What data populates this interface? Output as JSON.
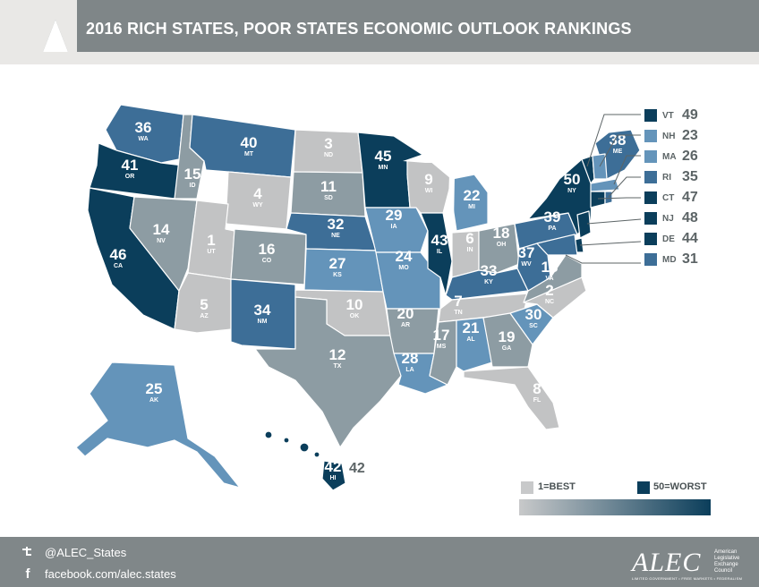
{
  "title": "2016 RICH STATES, POOR STATES ECONOMIC OUTLOOK RANKINGS",
  "scale": {
    "best_label": "1=BEST",
    "worst_label": "50=WORST",
    "best_color": "#c8c9ca",
    "worst_color": "#0b3e5b"
  },
  "colors": {
    "r1_10": "#c2c3c4",
    "r11_20": "#8d9ca3",
    "r21_30": "#6494ba",
    "r31_40": "#3d6e97",
    "r41_50": "#0b3e5b",
    "lake": "#ffffff"
  },
  "states": {
    "WA": {
      "rank": "36",
      "abbr": "WA"
    },
    "OR": {
      "rank": "41",
      "abbr": "OR"
    },
    "CA": {
      "rank": "46",
      "abbr": "CA"
    },
    "ID": {
      "rank": "15",
      "abbr": "ID"
    },
    "NV": {
      "rank": "14",
      "abbr": "NV"
    },
    "MT": {
      "rank": "40",
      "abbr": "MT"
    },
    "WY": {
      "rank": "4",
      "abbr": "WY"
    },
    "UT": {
      "rank": "1",
      "abbr": "UT"
    },
    "AZ": {
      "rank": "5",
      "abbr": "AZ"
    },
    "CO": {
      "rank": "16",
      "abbr": "CO"
    },
    "NM": {
      "rank": "34",
      "abbr": "NM"
    },
    "ND": {
      "rank": "3",
      "abbr": "ND"
    },
    "SD": {
      "rank": "11",
      "abbr": "SD"
    },
    "NE": {
      "rank": "32",
      "abbr": "NE"
    },
    "KS": {
      "rank": "27",
      "abbr": "KS"
    },
    "OK": {
      "rank": "10",
      "abbr": "OK"
    },
    "TX": {
      "rank": "12",
      "abbr": "TX"
    },
    "MN": {
      "rank": "45",
      "abbr": "MN"
    },
    "IA": {
      "rank": "29",
      "abbr": "IA"
    },
    "MO": {
      "rank": "24",
      "abbr": "MO"
    },
    "AR": {
      "rank": "20",
      "abbr": "AR"
    },
    "LA": {
      "rank": "28",
      "abbr": "LA"
    },
    "WI": {
      "rank": "9",
      "abbr": "WI"
    },
    "IL": {
      "rank": "43",
      "abbr": "IL"
    },
    "MI": {
      "rank": "22",
      "abbr": "MI"
    },
    "IN": {
      "rank": "6",
      "abbr": "IN"
    },
    "OH": {
      "rank": "18",
      "abbr": "OH"
    },
    "KY": {
      "rank": "33",
      "abbr": "KY"
    },
    "TN": {
      "rank": "7",
      "abbr": "TN"
    },
    "MS": {
      "rank": "17",
      "abbr": "MS"
    },
    "AL": {
      "rank": "21",
      "abbr": "AL"
    },
    "GA": {
      "rank": "19",
      "abbr": "GA"
    },
    "FL": {
      "rank": "8",
      "abbr": "FL"
    },
    "SC": {
      "rank": "30",
      "abbr": "SC"
    },
    "NC": {
      "rank": "2",
      "abbr": "NC"
    },
    "VA": {
      "rank": "13",
      "abbr": "VA"
    },
    "WV": {
      "rank": "37",
      "abbr": "WV"
    },
    "PA": {
      "rank": "39",
      "abbr": "PA"
    },
    "NY": {
      "rank": "50",
      "abbr": "NY"
    },
    "ME": {
      "rank": "38",
      "abbr": "ME"
    },
    "AK": {
      "rank": "25",
      "abbr": "AK"
    },
    "HI": {
      "rank": "42",
      "abbr": "HI"
    }
  },
  "legend": [
    {
      "abbr": "VT",
      "rank": "49",
      "color": "#0b3e5b"
    },
    {
      "abbr": "NH",
      "rank": "23",
      "color": "#6494ba"
    },
    {
      "abbr": "MA",
      "rank": "26",
      "color": "#6494ba"
    },
    {
      "abbr": "RI",
      "rank": "35",
      "color": "#3d6e97"
    },
    {
      "abbr": "CT",
      "rank": "47",
      "color": "#0b3e5b"
    },
    {
      "abbr": "NJ",
      "rank": "48",
      "color": "#0b3e5b"
    },
    {
      "abbr": "DE",
      "rank": "44",
      "color": "#0b3e5b"
    },
    {
      "abbr": "MD",
      "rank": "31",
      "color": "#3d6e97"
    }
  ],
  "footer": {
    "twitter": "@ALEC_States",
    "facebook": "facebook.com/alec.states",
    "twitter_icon": "twitter-bird-icon",
    "facebook_icon": "facebook-f-icon"
  },
  "logo": {
    "text": "ALEC",
    "side": "American Legislative Exchange Council",
    "tagline": "LIMITED GOVERNMENT • FREE MARKETS • FEDERALISM"
  }
}
